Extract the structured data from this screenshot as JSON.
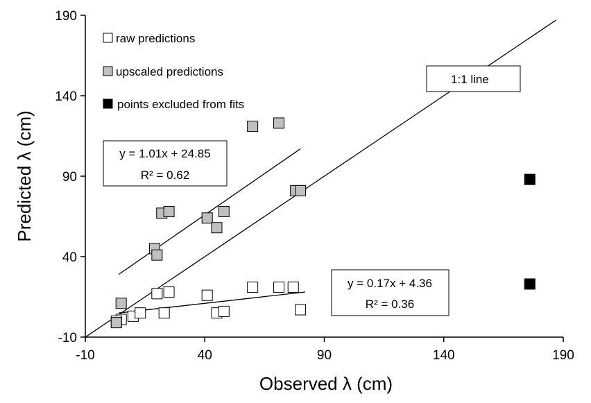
{
  "chart_data": {
    "type": "scatter",
    "xlabel": "Observed λ (cm)",
    "ylabel": "Predicted λ (cm)",
    "xlim": [
      -10,
      190
    ],
    "ylim": [
      -10,
      190
    ],
    "xticks": [
      "-10",
      "40",
      "90",
      "140",
      "190"
    ],
    "yticks": [
      "-10",
      "40",
      "90",
      "140",
      "190"
    ],
    "xtick_values": [
      -10,
      40,
      90,
      140,
      190
    ],
    "ytick_values": [
      -10,
      40,
      90,
      140,
      190
    ],
    "grid": false,
    "legend_position": "top-left",
    "series": [
      {
        "name": "raw predictions",
        "fill": "#ffffff",
        "points": [
          [
            5,
            1
          ],
          [
            3,
            0
          ],
          [
            10,
            3
          ],
          [
            13,
            5
          ],
          [
            20,
            17
          ],
          [
            23,
            5
          ],
          [
            25,
            18
          ],
          [
            41,
            16
          ],
          [
            45,
            5
          ],
          [
            48,
            6
          ],
          [
            60,
            21
          ],
          [
            71,
            21
          ],
          [
            77,
            21
          ],
          [
            80,
            7
          ]
        ]
      },
      {
        "name": "upscaled predictions",
        "fill": "#c0c0c0",
        "points": [
          [
            3,
            -1
          ],
          [
            5,
            11
          ],
          [
            19,
            45
          ],
          [
            20,
            41
          ],
          [
            22,
            67
          ],
          [
            25,
            68
          ],
          [
            41,
            64
          ],
          [
            45,
            58
          ],
          [
            48,
            68
          ],
          [
            60,
            121
          ],
          [
            71,
            123
          ],
          [
            78,
            81
          ],
          [
            80,
            81
          ]
        ]
      },
      {
        "name": "points excluded from fits",
        "fill": "#000000",
        "points": [
          [
            176,
            88
          ],
          [
            176,
            23
          ]
        ]
      }
    ],
    "lines": [
      {
        "name": "1:1 line",
        "from": [
          -10,
          -10
        ],
        "to": [
          187,
          187
        ]
      },
      {
        "name": "upscaled fit",
        "from": [
          4,
          29
        ],
        "to": [
          80,
          107
        ]
      },
      {
        "name": "raw fit",
        "from": [
          4,
          5
        ],
        "to": [
          82,
          18
        ]
      }
    ],
    "annotations": {
      "one_to_one": "1:1 line",
      "upscaled_fit_eq": "y = 1.01x + 24.85",
      "upscaled_fit_r2": "R² = 0.62",
      "raw_fit_eq": "y = 0.17x + 4.36",
      "raw_fit_r2": "R² = 0.36"
    }
  }
}
